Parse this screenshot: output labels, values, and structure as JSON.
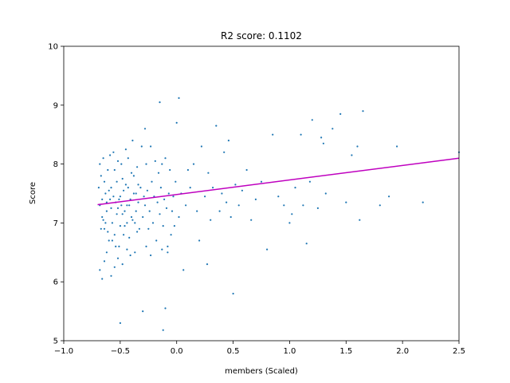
{
  "chart_data": {
    "type": "scatter",
    "title": "R2 score: 0.1102",
    "xlabel": "members (Scaled)",
    "ylabel": "Score",
    "xlim": [
      -1.0,
      2.5
    ],
    "ylim": [
      5,
      10
    ],
    "grid": false,
    "x_ticks": [
      -1.0,
      -0.5,
      0.0,
      0.5,
      1.0,
      1.5,
      2.0,
      2.5
    ],
    "x_tick_labels": [
      "−1.0",
      "−0.5",
      "0.0",
      "0.5",
      "1.0",
      "1.5",
      "2.0",
      "2.5"
    ],
    "y_ticks": [
      5,
      6,
      7,
      8,
      9,
      10
    ],
    "y_tick_labels": [
      "5",
      "6",
      "7",
      "8",
      "9",
      "10"
    ],
    "colors": {
      "points": "#1f77b4",
      "fit_line": "#bf00bf"
    },
    "fit_line": {
      "x": [
        -0.7,
        2.5
      ],
      "y": [
        7.31,
        8.1
      ]
    },
    "series": [
      {
        "points": [
          [
            -0.68,
            7.3
          ],
          [
            -0.67,
            7.8
          ],
          [
            -0.66,
            7.1
          ],
          [
            -0.65,
            8.1
          ],
          [
            -0.64,
            6.9
          ],
          [
            -0.63,
            7.5
          ],
          [
            -0.62,
            7.2
          ],
          [
            -0.61,
            7.9
          ],
          [
            -0.6,
            6.7
          ],
          [
            -0.59,
            7.4
          ],
          [
            -0.58,
            7.6
          ],
          [
            -0.57,
            7.0
          ],
          [
            -0.56,
            8.2
          ],
          [
            -0.55,
            6.8
          ],
          [
            -0.54,
            7.35
          ],
          [
            -0.53,
            7.7
          ],
          [
            -0.52,
            7.25
          ],
          [
            -0.51,
            6.6
          ],
          [
            -0.5,
            7.45
          ],
          [
            -0.49,
            8.0
          ],
          [
            -0.48,
            7.15
          ],
          [
            -0.47,
            7.55
          ],
          [
            -0.46,
            6.95
          ],
          [
            -0.45,
            7.65
          ],
          [
            -0.44,
            7.3
          ],
          [
            -0.43,
            8.1
          ],
          [
            -0.42,
            6.75
          ],
          [
            -0.41,
            7.4
          ],
          [
            -0.4,
            7.85
          ],
          [
            -0.39,
            7.05
          ],
          [
            -0.38,
            7.5
          ],
          [
            -0.37,
            6.5
          ],
          [
            -0.36,
            7.2
          ],
          [
            -0.35,
            7.95
          ],
          [
            -0.34,
            7.35
          ],
          [
            -0.33,
            6.9
          ],
          [
            -0.32,
            7.6
          ],
          [
            -0.31,
            8.3
          ],
          [
            -0.3,
            7.1
          ],
          [
            -0.29,
            7.45
          ],
          [
            -0.68,
            6.2
          ],
          [
            -0.66,
            6.05
          ],
          [
            -0.64,
            6.35
          ],
          [
            -0.62,
            6.5
          ],
          [
            -0.69,
            7.6
          ],
          [
            -0.68,
            8.0
          ],
          [
            -0.67,
            6.9
          ],
          [
            -0.66,
            7.4
          ],
          [
            -0.65,
            7.05
          ],
          [
            -0.64,
            7.7
          ],
          [
            -0.63,
            7.0
          ],
          [
            -0.62,
            7.35
          ],
          [
            -0.61,
            6.85
          ],
          [
            -0.6,
            7.55
          ],
          [
            -0.59,
            8.15
          ],
          [
            -0.58,
            7.25
          ],
          [
            -0.57,
            6.7
          ],
          [
            -0.56,
            7.45
          ],
          [
            -0.55,
            7.9
          ],
          [
            -0.54,
            6.6
          ],
          [
            -0.53,
            7.15
          ],
          [
            -0.52,
            8.05
          ],
          [
            -0.51,
            7.4
          ],
          [
            -0.5,
            6.95
          ],
          [
            -0.49,
            7.3
          ],
          [
            -0.48,
            7.75
          ],
          [
            -0.47,
            6.8
          ],
          [
            -0.46,
            7.2
          ],
          [
            -0.45,
            8.25
          ],
          [
            -0.44,
            7.0
          ],
          [
            -0.43,
            7.6
          ],
          [
            -0.42,
            7.3
          ],
          [
            -0.41,
            6.45
          ],
          [
            -0.4,
            7.1
          ],
          [
            -0.39,
            8.4
          ],
          [
            -0.38,
            7.8
          ],
          [
            -0.37,
            7.0
          ],
          [
            -0.36,
            7.5
          ],
          [
            -0.35,
            6.85
          ],
          [
            -0.34,
            7.65
          ],
          [
            -0.55,
            6.25
          ],
          [
            -0.52,
            6.4
          ],
          [
            -0.58,
            6.1
          ],
          [
            -0.48,
            6.3
          ],
          [
            -0.44,
            6.55
          ],
          [
            -0.5,
            5.3
          ],
          [
            -0.3,
            5.5
          ],
          [
            -0.28,
            7.3
          ],
          [
            -0.27,
            8.0
          ],
          [
            -0.26,
            7.55
          ],
          [
            -0.25,
            6.9
          ],
          [
            -0.24,
            7.2
          ],
          [
            -0.23,
            8.3
          ],
          [
            -0.22,
            7.7
          ],
          [
            -0.21,
            7.0
          ],
          [
            -0.2,
            7.45
          ],
          [
            -0.19,
            8.05
          ],
          [
            -0.18,
            6.7
          ],
          [
            -0.17,
            7.35
          ],
          [
            -0.16,
            7.85
          ],
          [
            -0.15,
            7.15
          ],
          [
            -0.14,
            7.6
          ],
          [
            -0.13,
            8.0
          ],
          [
            -0.12,
            6.95
          ],
          [
            -0.11,
            7.4
          ],
          [
            -0.1,
            8.1
          ],
          [
            -0.09,
            7.25
          ],
          [
            -0.08,
            6.6
          ],
          [
            -0.07,
            7.5
          ],
          [
            -0.06,
            7.9
          ],
          [
            -0.05,
            6.8
          ],
          [
            -0.04,
            7.2
          ],
          [
            -0.03,
            7.45
          ],
          [
            -0.02,
            6.95
          ],
          [
            -0.01,
            7.7
          ],
          [
            0.0,
            8.7
          ],
          [
            0.02,
            7.1
          ],
          [
            0.04,
            7.5
          ],
          [
            0.06,
            6.2
          ],
          [
            -0.27,
            6.6
          ],
          [
            -0.23,
            6.45
          ],
          [
            -0.13,
            6.55
          ],
          [
            -0.08,
            6.5
          ],
          [
            -0.15,
            9.05
          ],
          [
            0.02,
            9.12
          ],
          [
            -0.28,
            8.6
          ],
          [
            -0.1,
            5.55
          ],
          [
            -0.12,
            5.18
          ],
          [
            0.08,
            7.3
          ],
          [
            0.1,
            7.9
          ],
          [
            0.12,
            7.6
          ],
          [
            0.15,
            8.0
          ],
          [
            0.18,
            7.2
          ],
          [
            0.2,
            6.7
          ],
          [
            0.22,
            8.3
          ],
          [
            0.25,
            7.45
          ],
          [
            0.27,
            6.3
          ],
          [
            0.28,
            7.85
          ],
          [
            0.3,
            7.05
          ],
          [
            0.32,
            7.6
          ],
          [
            0.35,
            8.65
          ],
          [
            0.38,
            7.2
          ],
          [
            0.4,
            7.5
          ],
          [
            0.42,
            8.2
          ],
          [
            0.44,
            7.35
          ],
          [
            0.46,
            8.4
          ],
          [
            0.48,
            7.1
          ],
          [
            0.5,
            5.8
          ],
          [
            0.52,
            7.65
          ],
          [
            0.55,
            7.3
          ],
          [
            0.58,
            7.55
          ],
          [
            0.62,
            7.9
          ],
          [
            0.66,
            7.05
          ],
          [
            0.7,
            7.4
          ],
          [
            0.75,
            7.7
          ],
          [
            0.8,
            6.55
          ],
          [
            0.85,
            8.5
          ],
          [
            0.9,
            7.45
          ],
          [
            0.95,
            7.3
          ],
          [
            1.0,
            7.0
          ],
          [
            1.02,
            7.15
          ],
          [
            1.05,
            7.6
          ],
          [
            1.1,
            8.5
          ],
          [
            1.12,
            7.3
          ],
          [
            1.15,
            6.65
          ],
          [
            1.18,
            7.7
          ],
          [
            1.2,
            8.75
          ],
          [
            1.25,
            7.25
          ],
          [
            1.28,
            8.45
          ],
          [
            1.3,
            8.35
          ],
          [
            1.32,
            7.5
          ],
          [
            1.38,
            8.6
          ],
          [
            1.45,
            8.85
          ],
          [
            1.5,
            7.35
          ],
          [
            1.55,
            8.15
          ],
          [
            1.6,
            8.3
          ],
          [
            1.62,
            7.05
          ],
          [
            1.65,
            8.9
          ],
          [
            1.8,
            7.3
          ],
          [
            1.88,
            7.45
          ],
          [
            1.95,
            8.3
          ],
          [
            2.18,
            7.35
          ],
          [
            2.5,
            8.2
          ]
        ]
      }
    ]
  }
}
